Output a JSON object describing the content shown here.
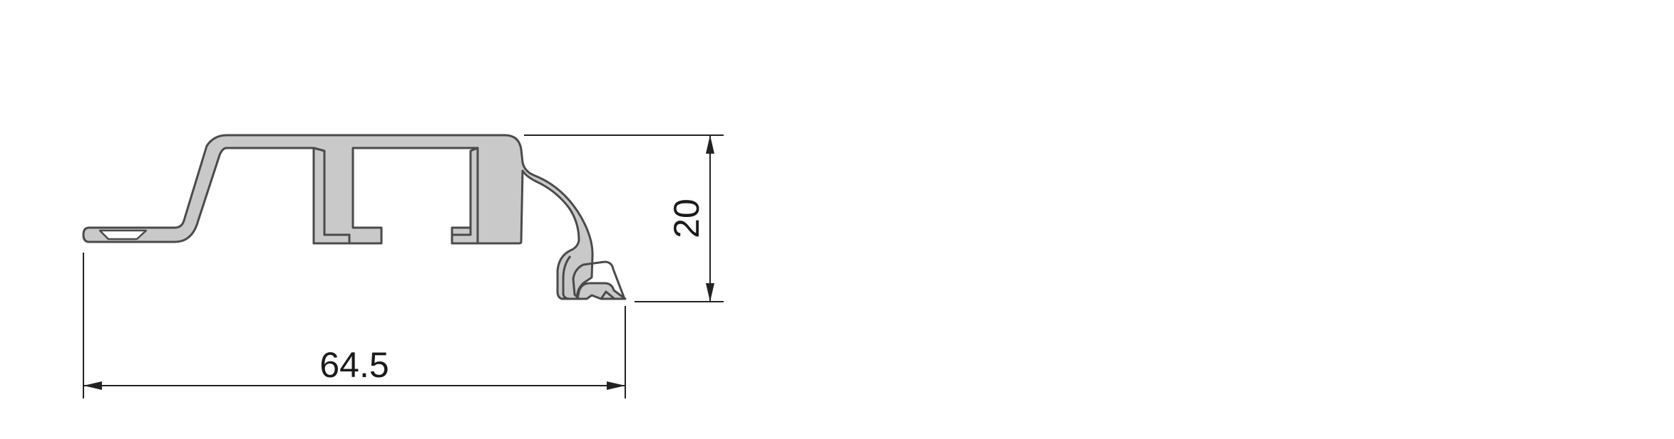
{
  "drawing": {
    "dimensions": {
      "width": {
        "label": "64.5"
      },
      "height": {
        "label": "20"
      }
    },
    "colors": {
      "profile_fill": "#c9c9c9",
      "profile_stroke": "#4a4a4a",
      "dimension_line": "#222222",
      "background": "#ffffff"
    }
  }
}
